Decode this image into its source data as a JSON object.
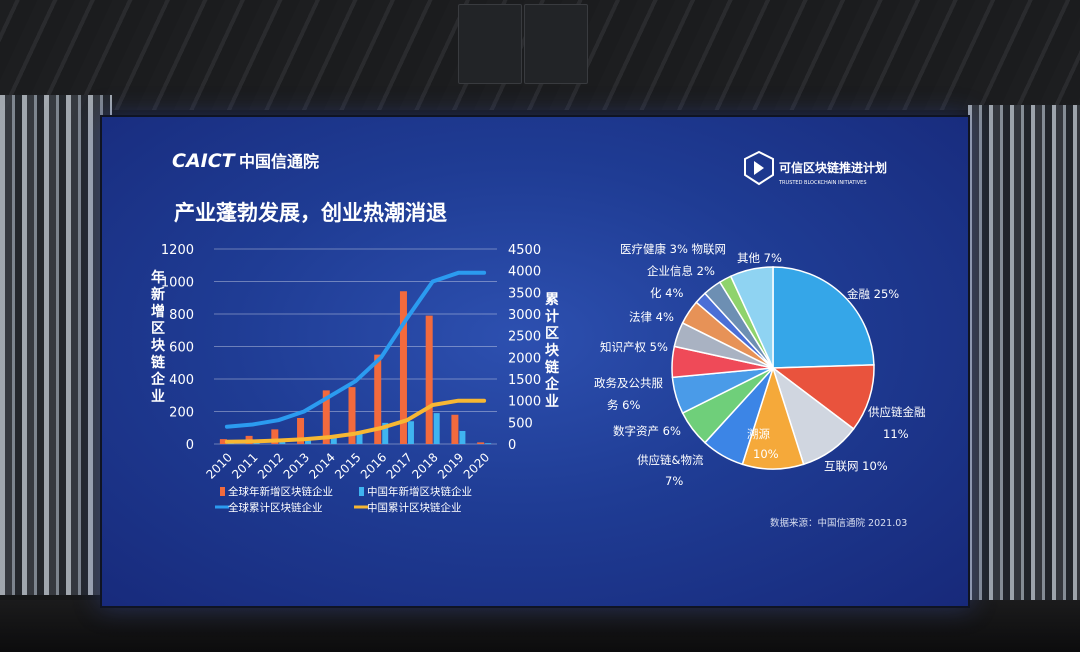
{
  "slide": {
    "logo_left_brand": "CAICT",
    "logo_left_cn": "中国信通院",
    "logo_right_cn": "可信区块链推进计划",
    "logo_right_en": "TRUSTED BLOCKCHAIN INITIATIVES",
    "title": "产业蓬勃发展，创业热潮消退",
    "source": "数据来源：中国信通院 2021.03"
  },
  "colors": {
    "bar_global": "#f26a3d",
    "bar_china": "#3fb4f0",
    "line_global": "#2b9bf0",
    "line_china": "#f7b733"
  },
  "chart_data": [
    {
      "type": "bar",
      "categories": [
        "2010",
        "2011",
        "2012",
        "2013",
        "2014",
        "2015",
        "2016",
        "2017",
        "2018",
        "2019",
        "2020"
      ],
      "ylabel": "年新增区块链企业",
      "y2label": "累计区块链企业",
      "ylim": [
        0,
        1200
      ],
      "y2lim": [
        0,
        4500
      ],
      "yticks": [
        "0",
        "200",
        "400",
        "600",
        "800",
        "1000",
        "1200"
      ],
      "y2ticks": [
        "0",
        "500",
        "1000",
        "1500",
        "2000",
        "2500",
        "3000",
        "3500",
        "4000",
        "4500"
      ],
      "grid": true,
      "legend_position": "bottom",
      "series": [
        {
          "name": "全球年新增区块链企业",
          "type": "bar",
          "axis": "left",
          "values": [
            30,
            50,
            90,
            160,
            330,
            350,
            550,
            940,
            790,
            180,
            10
          ]
        },
        {
          "name": "中国年新增区块链企业",
          "type": "bar",
          "axis": "left",
          "values": [
            5,
            10,
            20,
            30,
            50,
            80,
            130,
            140,
            190,
            80,
            5
          ]
        },
        {
          "name": "全球累计区块链企业",
          "type": "line",
          "axis": "right",
          "values": [
            400,
            450,
            550,
            750,
            1100,
            1450,
            2000,
            2900,
            3750,
            3950,
            3950
          ]
        },
        {
          "name": "中国累计区块链企业",
          "type": "line",
          "axis": "right",
          "values": [
            50,
            60,
            80,
            110,
            160,
            240,
            370,
            550,
            900,
            1000,
            1000
          ]
        }
      ]
    },
    {
      "type": "pie",
      "slices": [
        {
          "label": "金融",
          "pct": "25%",
          "value": 25,
          "color": "#35a6e8"
        },
        {
          "label": "供应链金融",
          "pct": "11%",
          "value": 11,
          "color": "#e9533d"
        },
        {
          "label": "互联网",
          "pct": "10%",
          "value": 10,
          "color": "#d0d6e0"
        },
        {
          "label": "溯源",
          "pct": "10%",
          "value": 10,
          "color": "#f5a93a"
        },
        {
          "label": "供应链&物流",
          "pct": "7%",
          "value": 7,
          "color": "#3c85e6"
        },
        {
          "label": "数字资产",
          "pct": "6%",
          "value": 6,
          "color": "#6fcf7a"
        },
        {
          "label": "政务及公共服务",
          "pct": "6%",
          "value": 6,
          "color": "#4a9be8"
        },
        {
          "label": "知识产权",
          "pct": "5%",
          "value": 5,
          "color": "#ef4a58"
        },
        {
          "label": "法律",
          "pct": "4%",
          "value": 4,
          "color": "#a9b2c2"
        },
        {
          "label": "化",
          "pct": "4%",
          "value": 4,
          "color": "#e79257"
        },
        {
          "label": "企业信息",
          "pct": "2%",
          "value": 2,
          "color": "#4b6fd6"
        },
        {
          "label": "医疗健康",
          "pct": "3%",
          "value": 3,
          "color": "#6d8fb3"
        },
        {
          "label": "物联网",
          "pct": "",
          "value": 2,
          "color": "#8fd36d"
        },
        {
          "label": "其他",
          "pct": "7%",
          "value": 7,
          "color": "#8fd3f2"
        }
      ]
    }
  ],
  "pie_text": {
    "jinrong": "金融 25%",
    "gylj_1": "供应链金融",
    "gylj_2": "11%",
    "hulian": "互联网 10%",
    "suyuan_1": "溯源",
    "suyuan_2": "10%",
    "gyl_1": "供应链&物流",
    "gyl_2": "7%",
    "shuzi": "数字资产 6%",
    "zhengwu_1": "政务及公共服",
    "zhengwu_2": "务 6%",
    "zhishi": "知识产权 5%",
    "falv": "法律 4%",
    "hua": "化 4%",
    "qiye": "企业信息  2%",
    "yiliao": "医疗健康 3% 物联网",
    "qita": "其他 7%"
  }
}
